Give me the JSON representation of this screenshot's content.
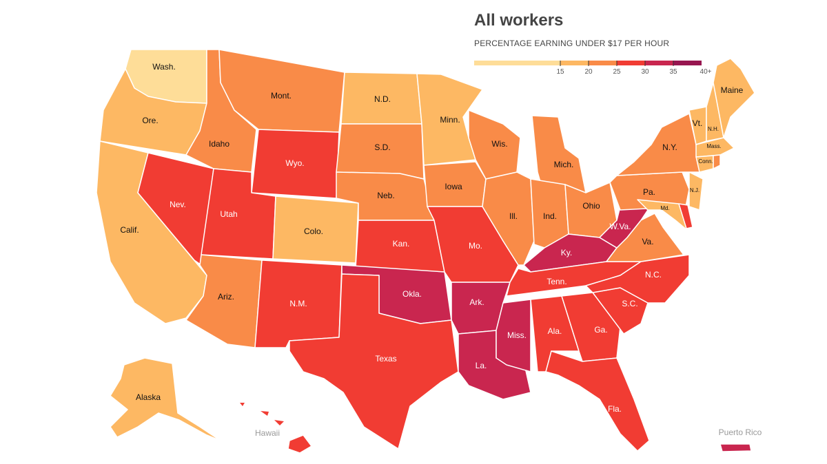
{
  "title": "All workers",
  "subtitle": "PERCENTAGE EARNING UNDER $17 PER HOUR",
  "legend": {
    "bins": [
      {
        "range": "<15",
        "color": "#fedd98"
      },
      {
        "range": "15-20",
        "color": "#fdb863"
      },
      {
        "range": "20-25",
        "color": "#f98b48"
      },
      {
        "range": "25-30",
        "color": "#f13c33"
      },
      {
        "range": "30-35",
        "color": "#c9264f"
      },
      {
        "range": "35-40+",
        "color": "#971650"
      }
    ],
    "ticks": [
      "15",
      "20",
      "25",
      "30",
      "35",
      "40+"
    ]
  },
  "annotations": {
    "hawaii": "Hawaii",
    "puerto_rico": "Puerto Rico"
  },
  "states": [
    {
      "id": "wa",
      "label": "Wash.",
      "bin": "<15"
    },
    {
      "id": "or",
      "label": "Ore.",
      "bin": "15-20"
    },
    {
      "id": "ca",
      "label": "Calif.",
      "bin": "15-20"
    },
    {
      "id": "nv",
      "label": "Nev.",
      "bin": "25-30"
    },
    {
      "id": "id",
      "label": "Idaho",
      "bin": "20-25"
    },
    {
      "id": "mt",
      "label": "Mont.",
      "bin": "20-25"
    },
    {
      "id": "wy",
      "label": "Wyo.",
      "bin": "25-30"
    },
    {
      "id": "ut",
      "label": "Utah",
      "bin": "25-30"
    },
    {
      "id": "co",
      "label": "Colo.",
      "bin": "15-20"
    },
    {
      "id": "az",
      "label": "Ariz.",
      "bin": "20-25"
    },
    {
      "id": "nm",
      "label": "N.M.",
      "bin": "25-30"
    },
    {
      "id": "nd",
      "label": "N.D.",
      "bin": "15-20"
    },
    {
      "id": "sd",
      "label": "S.D.",
      "bin": "20-25"
    },
    {
      "id": "ne",
      "label": "Neb.",
      "bin": "20-25"
    },
    {
      "id": "ks",
      "label": "Kan.",
      "bin": "25-30"
    },
    {
      "id": "ok",
      "label": "Okla.",
      "bin": "30-35"
    },
    {
      "id": "tx",
      "label": "Texas",
      "bin": "25-30"
    },
    {
      "id": "mn",
      "label": "Minn.",
      "bin": "15-20"
    },
    {
      "id": "ia",
      "label": "Iowa",
      "bin": "20-25"
    },
    {
      "id": "mo",
      "label": "Mo.",
      "bin": "25-30"
    },
    {
      "id": "ar",
      "label": "Ark.",
      "bin": "30-35"
    },
    {
      "id": "la",
      "label": "La.",
      "bin": "30-35"
    },
    {
      "id": "wi",
      "label": "Wis.",
      "bin": "20-25"
    },
    {
      "id": "il",
      "label": "Ill.",
      "bin": "20-25"
    },
    {
      "id": "mi",
      "label": "Mich.",
      "bin": "20-25"
    },
    {
      "id": "in",
      "label": "Ind.",
      "bin": "20-25"
    },
    {
      "id": "oh",
      "label": "Ohio",
      "bin": "20-25"
    },
    {
      "id": "ky",
      "label": "Ky.",
      "bin": "30-35"
    },
    {
      "id": "tn",
      "label": "Tenn.",
      "bin": "25-30"
    },
    {
      "id": "ms",
      "label": "Miss.",
      "bin": "30-35"
    },
    {
      "id": "al",
      "label": "Ala.",
      "bin": "25-30"
    },
    {
      "id": "ga",
      "label": "Ga.",
      "bin": "25-30"
    },
    {
      "id": "fl",
      "label": "Fla.",
      "bin": "25-30"
    },
    {
      "id": "sc",
      "label": "S.C.",
      "bin": "25-30"
    },
    {
      "id": "nc",
      "label": "N.C.",
      "bin": "25-30"
    },
    {
      "id": "va",
      "label": "Va.",
      "bin": "20-25"
    },
    {
      "id": "wv",
      "label": "W.Va.",
      "bin": "30-35"
    },
    {
      "id": "pa",
      "label": "Pa.",
      "bin": "20-25"
    },
    {
      "id": "ny",
      "label": "N.Y.",
      "bin": "20-25"
    },
    {
      "id": "md",
      "label": "Md.",
      "bin": "15-20"
    },
    {
      "id": "de",
      "label": "",
      "bin": "25-30"
    },
    {
      "id": "nj",
      "label": "N.J.",
      "bin": "15-20"
    },
    {
      "id": "vt",
      "label": "Vt.",
      "bin": "15-20"
    },
    {
      "id": "nh",
      "label": "N.H.",
      "bin": "15-20"
    },
    {
      "id": "me",
      "label": "Maine",
      "bin": "15-20"
    },
    {
      "id": "ma",
      "label": "Mass.",
      "bin": "15-20"
    },
    {
      "id": "ct",
      "label": "Conn.",
      "bin": "15-20"
    },
    {
      "id": "ri",
      "label": "",
      "bin": "20-25"
    },
    {
      "id": "ak",
      "label": "Alaska",
      "bin": "15-20"
    },
    {
      "id": "hi",
      "label": "",
      "bin": "25-30"
    },
    {
      "id": "pr",
      "label": "",
      "bin": "30-35"
    }
  ]
}
